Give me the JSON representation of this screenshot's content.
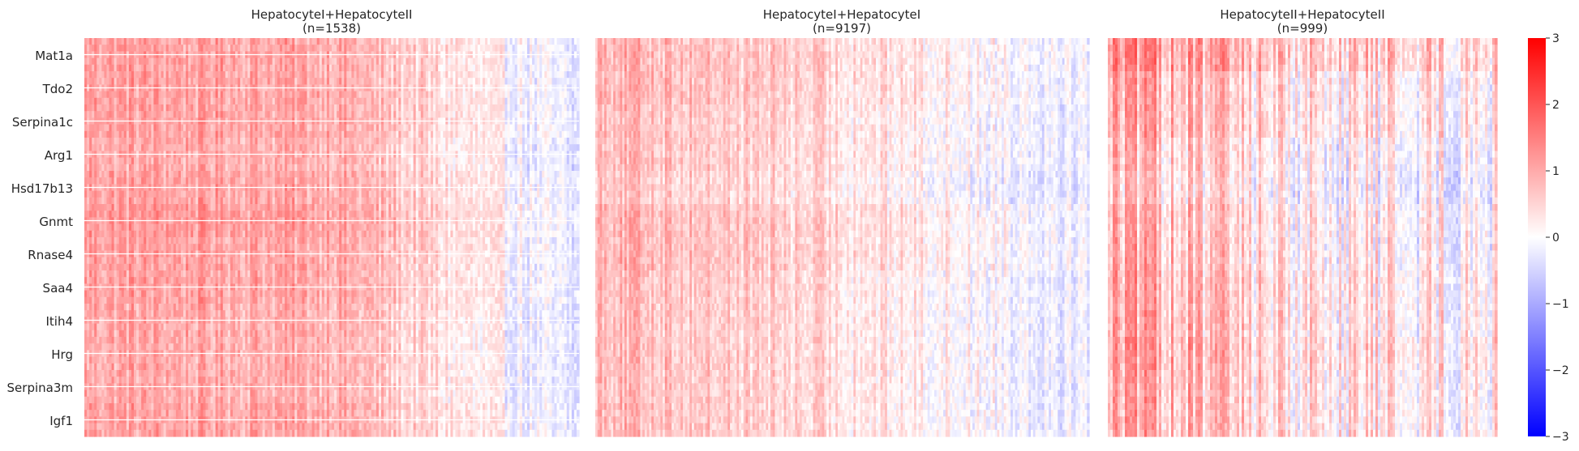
{
  "chart_data": {
    "type": "heatmap",
    "colormap": {
      "name": "bwr",
      "low": "#0000ff",
      "mid": "#ffffff",
      "high": "#ff0000"
    },
    "colorbar": {
      "vmin": -3,
      "vmax": 3,
      "ticks": [
        "3",
        "2",
        "1",
        "0",
        "−1",
        "−2",
        "−3"
      ]
    },
    "genes": [
      "Mat1a",
      "Tdo2",
      "Serpina1c",
      "Arg1",
      "Hsd17b13",
      "Gnmt",
      "Rnase4",
      "Saa4",
      "Itih4",
      "Hrg",
      "Serpina3m",
      "Igf1"
    ],
    "grid": "horizontal white lines at gene rows",
    "panels": [
      {
        "title": "HepatocyteI+HepatocyteII",
        "n_label": "(n=1538)",
        "n_cells": 1538,
        "approx_mean_by_position": {
          "start": 1.1,
          "middle": 1.0,
          "end": -0.4
        },
        "approx_row_mean": [
          1.0,
          1.0,
          1.0,
          0.9,
          1.0,
          1.1,
          1.0,
          1.0,
          0.9,
          0.9,
          0.9,
          1.0
        ]
      },
      {
        "title": "HepatocyteI+HepatocyteI",
        "n_label": "(n=9197)",
        "n_cells": 9197,
        "approx_mean_by_position": {
          "start": 0.9,
          "middle": 0.4,
          "end": -0.2
        },
        "approx_row_mean": [
          0.5,
          0.5,
          0.4,
          0.4,
          0.3,
          0.5,
          0.5,
          0.4,
          0.4,
          0.4,
          0.4,
          0.4
        ]
      },
      {
        "title": "HepatocyteII+HepatocyteII",
        "n_label": "(n=999)",
        "n_cells": 999,
        "approx_mean_by_position": {
          "start": 1.0,
          "middle": 0.3,
          "end": 0.2
        },
        "approx_row_mean": [
          0.8,
          0.5,
          0.5,
          0.3,
          0.2,
          0.4,
          0.4,
          0.5,
          0.5,
          0.6,
          0.5,
          0.5
        ]
      }
    ]
  }
}
